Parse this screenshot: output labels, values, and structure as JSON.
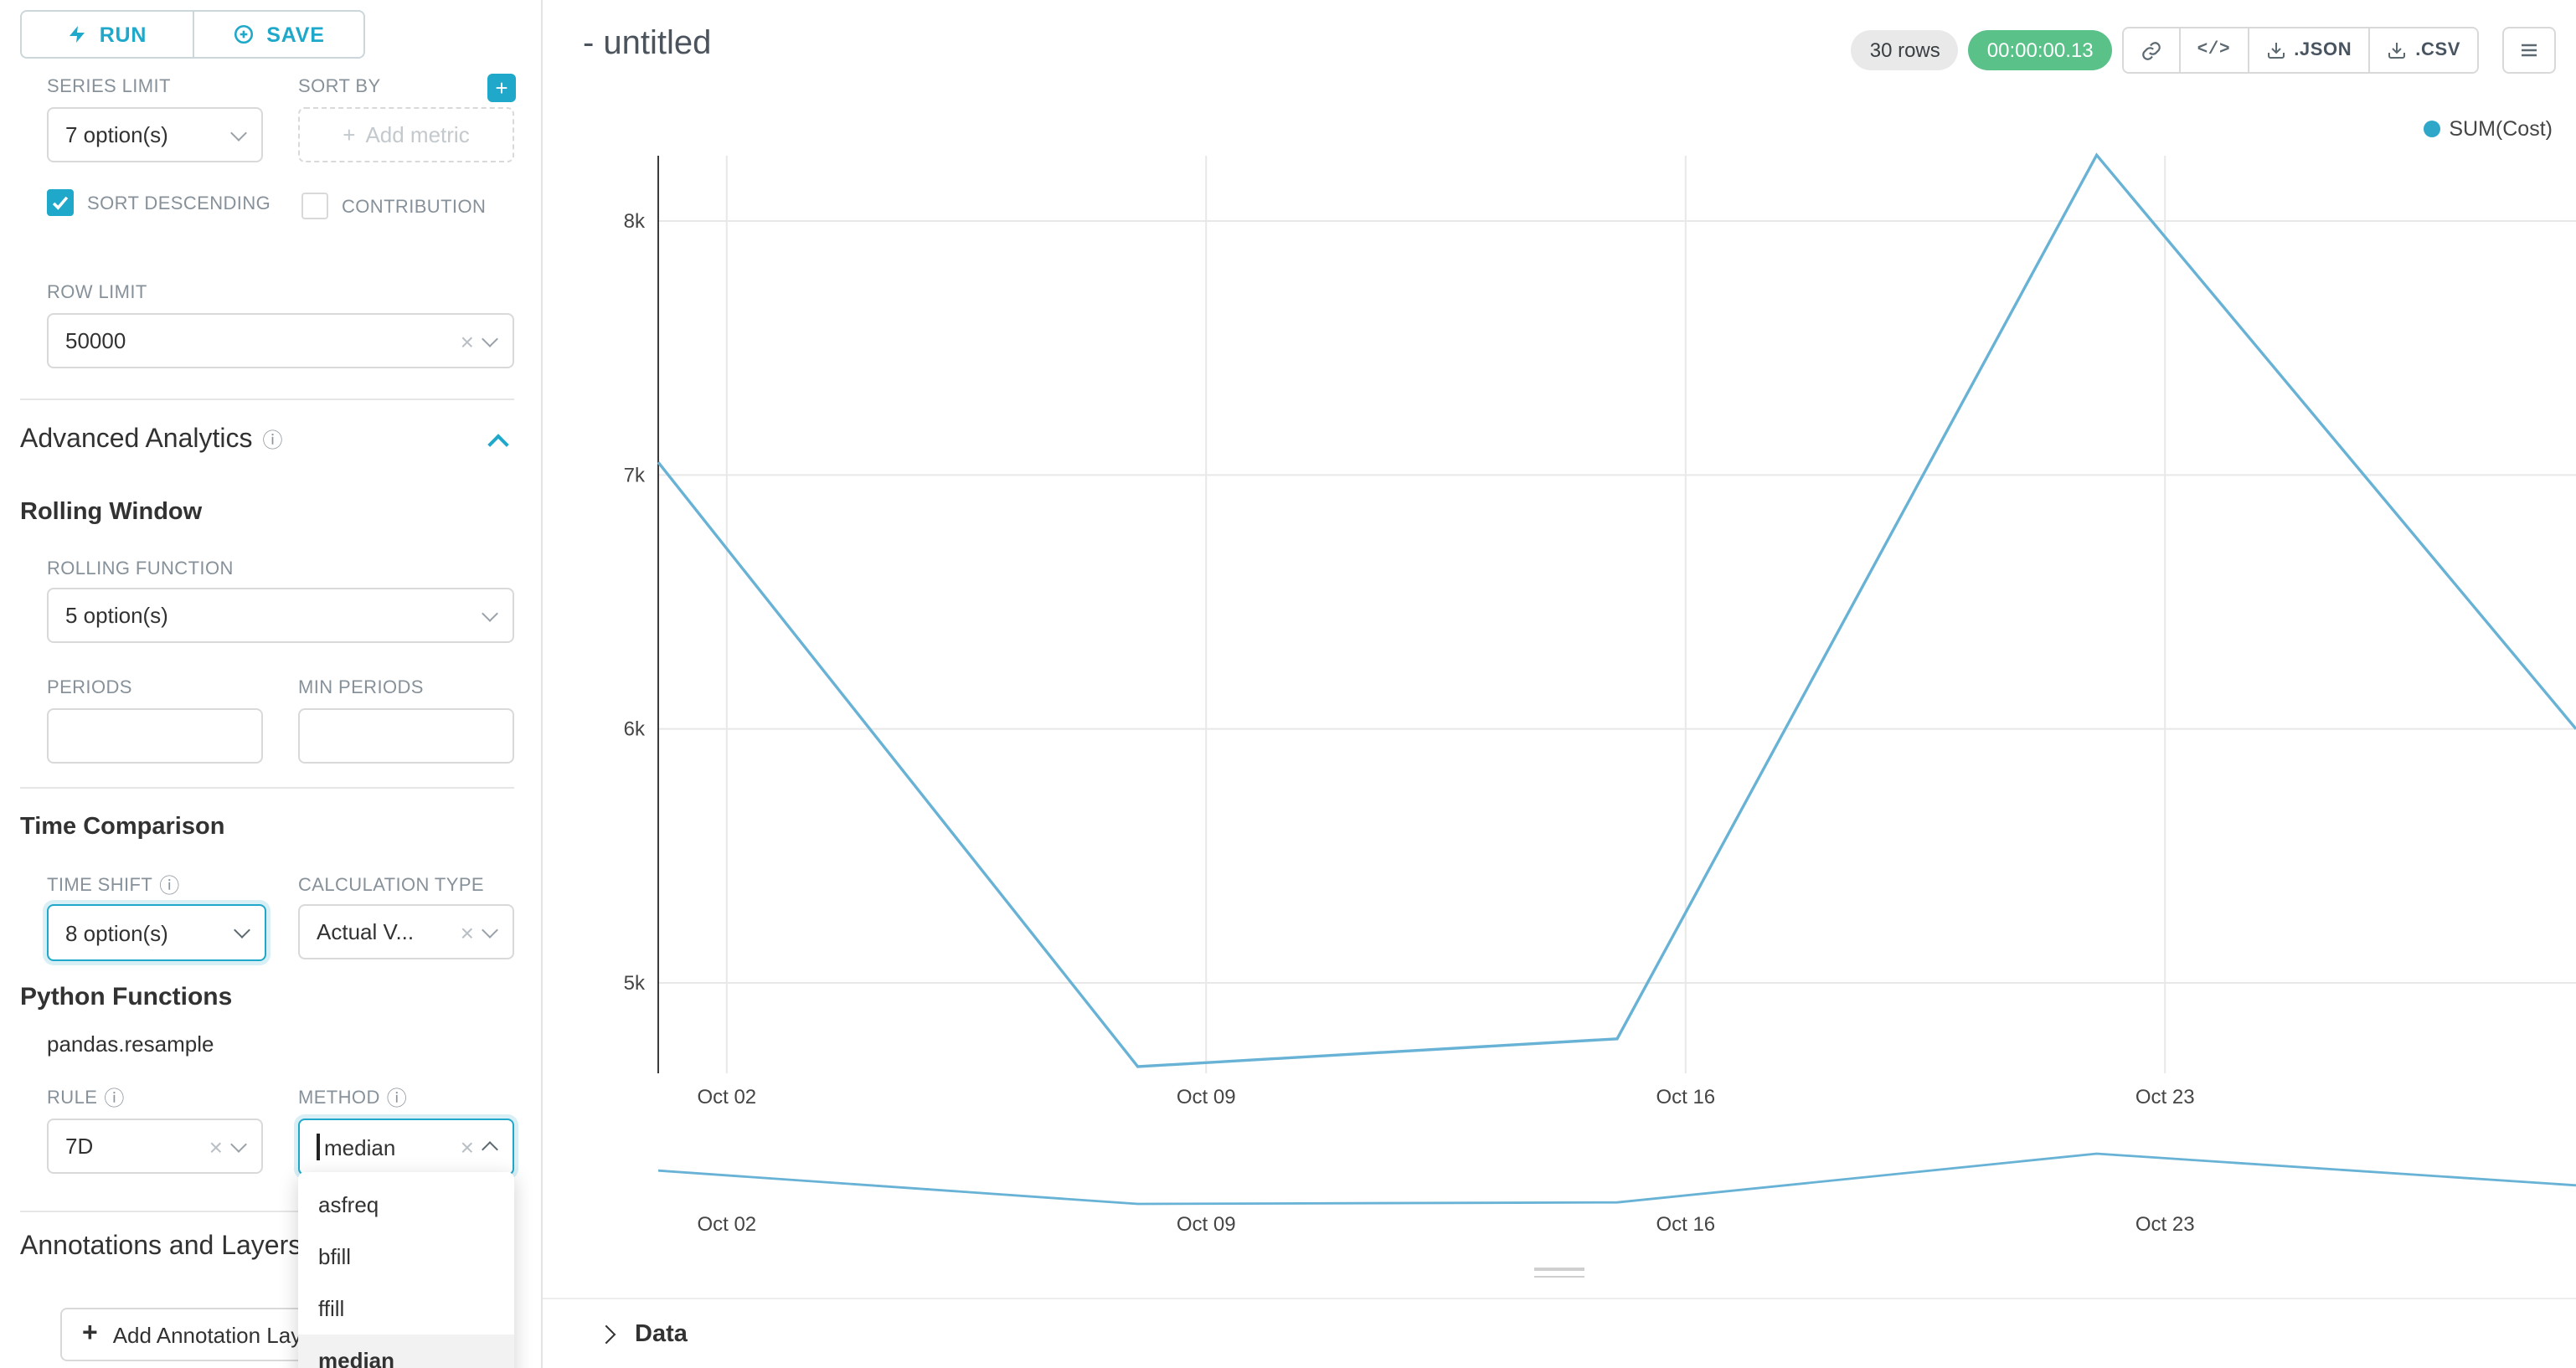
{
  "colors": {
    "accent": "#1FA8C9",
    "success": "#5AC189",
    "line": "#68B2D6",
    "legend_dot": "#2FA7C9"
  },
  "sidebar": {
    "run_label": "RUN",
    "save_label": "SAVE",
    "series_limit": {
      "label": "SERIES LIMIT",
      "value": "7 option(s)"
    },
    "sort_by": {
      "label": "SORT BY",
      "placeholder": "Add metric"
    },
    "sort_descending_label": "SORT DESCENDING",
    "contribution_label": "CONTRIBUTION",
    "row_limit": {
      "label": "ROW LIMIT",
      "value": "50000"
    },
    "advanced_analytics_title": "Advanced Analytics",
    "rolling_window_title": "Rolling Window",
    "rolling_function": {
      "label": "ROLLING FUNCTION",
      "value": "5 option(s)"
    },
    "periods_label": "PERIODS",
    "min_periods_label": "MIN PERIODS",
    "time_comparison_title": "Time Comparison",
    "time_shift": {
      "label": "TIME SHIFT",
      "value": "8 option(s)"
    },
    "calculation_type": {
      "label": "CALCULATION TYPE",
      "value": "Actual V..."
    },
    "python_functions_title": "Python Functions",
    "pandas_resample_label": "pandas.resample",
    "rule": {
      "label": "RULE",
      "value": "7D"
    },
    "method": {
      "label": "METHOD",
      "value": "median",
      "options": [
        "asfreq",
        "bfill",
        "ffill",
        "median"
      ],
      "selected": "median"
    },
    "annotations_title": "Annotations and Layers",
    "add_annotation_label": "Add Annotation Layer"
  },
  "header": {
    "title": "- untitled",
    "rows_badge": "30 rows",
    "timer_badge": "00:00:00.13",
    "json_label": ".JSON",
    "csv_label": ".CSV"
  },
  "chart_data": {
    "type": "line",
    "title": "- untitled",
    "legend": [
      "SUM(Cost)"
    ],
    "legend_position": "top-right",
    "grid": true,
    "x": [
      "Oct 01",
      "Oct 08",
      "Oct 15",
      "Oct 22",
      "Oct 29"
    ],
    "x_tick_labels": [
      "Oct 02",
      "Oct 09",
      "Oct 16",
      "Oct 23"
    ],
    "series": [
      {
        "name": "SUM(Cost)",
        "values": [
          7050,
          4670,
          4780,
          8260,
          6000
        ]
      }
    ],
    "y_ticks": [
      5000,
      6000,
      7000,
      8000
    ],
    "y_tick_labels": [
      "5k",
      "6k",
      "7k",
      "8k"
    ],
    "ylim": [
      4640,
      8260
    ],
    "color": "#68B2D6",
    "dot_color": "#2FA7C9",
    "mini_chart": true
  },
  "data_panel": {
    "label": "Data"
  }
}
